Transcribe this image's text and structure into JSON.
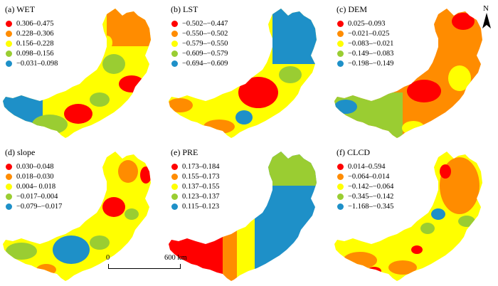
{
  "colors": {
    "class1": "#ff0000",
    "class2": "#ff8c00",
    "class3": "#ffff00",
    "class4": "#9acd32",
    "class5": "#1e90c8"
  },
  "panels": [
    {
      "title": "(a) WET",
      "legend": [
        "0.306–0.475",
        "0.228–0.306",
        "0.156–0.228",
        "0.098–0.156",
        "−0.031–0.098"
      ]
    },
    {
      "title": "(b) LST",
      "legend": [
        "−0.502–−0.447",
        "−0.550–−0.502",
        "−0.579–−0.550",
        "−0.609–−0.579",
        "−0.694–−0.609"
      ]
    },
    {
      "title": "(c) DEM",
      "legend": [
        "0.025–0.093",
        "−0.021–0.025",
        "−0.083–−0.021",
        "−0.149–−0.083",
        "−0.198–−0.149"
      ]
    },
    {
      "title": "(d) slope",
      "legend": [
        "0.030–0.048",
        "0.018–0.030",
        "0.004– 0.018",
        "−0.017–0.004",
        "−0.079–−0.017"
      ]
    },
    {
      "title": "(e) PRE",
      "legend": [
        "0.173–0.184",
        "0.155–0.173",
        "0.137–0.155",
        "0.123–0.137",
        "0.115–0.123"
      ]
    },
    {
      "title": "(f) CLCD",
      "legend": [
        "0.014–0.594",
        "−0.064–0.014",
        "−0.142–−0.064",
        "−0.345–−0.142",
        "−1.168–−0.345"
      ]
    }
  ],
  "north_arrow": {
    "label": "N"
  },
  "scale_bar": {
    "start": "0",
    "end": "600 km"
  }
}
